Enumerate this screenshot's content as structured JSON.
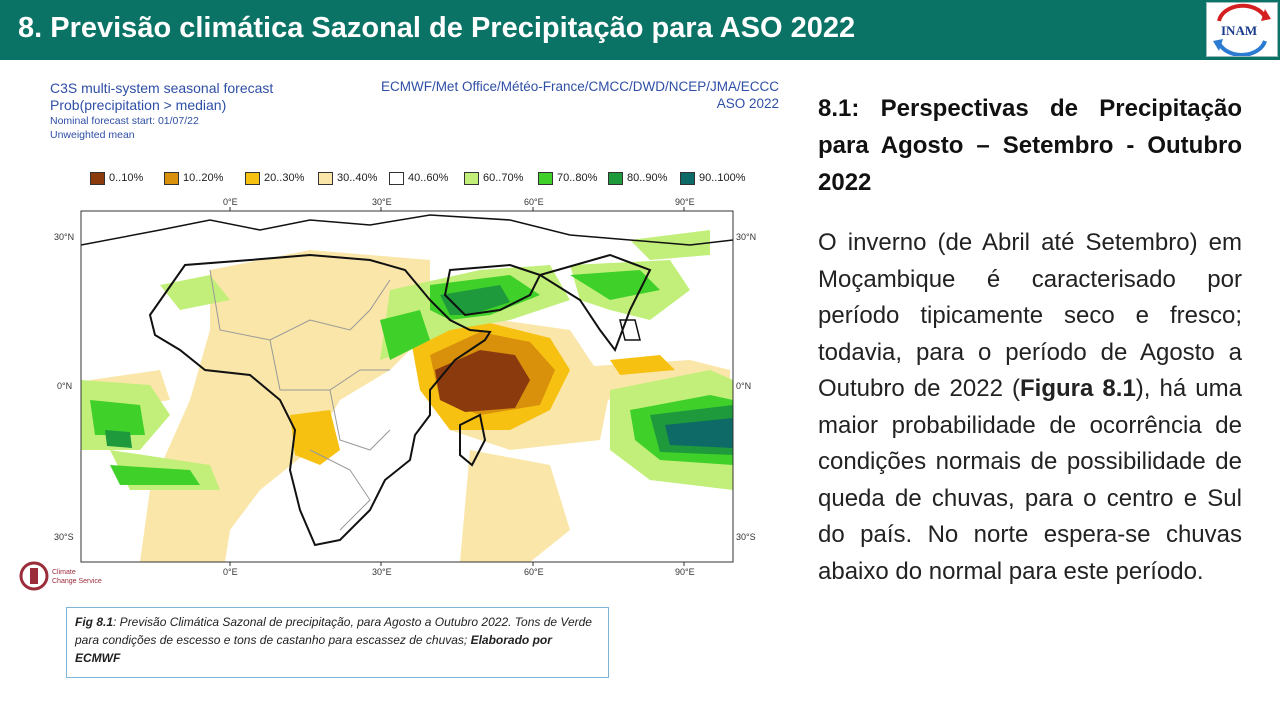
{
  "header": {
    "title": "8. Previsão climática Sazonal de Precipitação para ASO 2022",
    "logo_text": "INAM"
  },
  "forecast": {
    "title_line1": "C3S multi-system seasonal forecast",
    "title_line2": "Prob(precipitation > median)",
    "nominal_start": "Nominal forecast start: 01/07/22",
    "weighting": "Unweighted mean",
    "centres": "ECMWF/Met Office/Météo-France/CMCC/DWD/NCEP/JMA/ECCC",
    "period": "ASO 2022",
    "legend": [
      {
        "label": "0..10%",
        "color": "#8b3a0e"
      },
      {
        "label": "10..20%",
        "color": "#d9900a"
      },
      {
        "label": "20..30%",
        "color": "#f7c112"
      },
      {
        "label": "30..40%",
        "color": "#f9e6a8"
      },
      {
        "label": "40..60%",
        "color": "#ffffff"
      },
      {
        "label": "60..70%",
        "color": "#c2ef7a"
      },
      {
        "label": "70..80%",
        "color": "#3fd02a"
      },
      {
        "label": "80..90%",
        "color": "#1e9a3c"
      },
      {
        "label": "90..100%",
        "color": "#0d6a66"
      }
    ],
    "lon_labels": [
      "0°E",
      "30°E",
      "60°E",
      "90°E"
    ],
    "lat_labels": [
      "30°N",
      "0°N",
      "30°S"
    ]
  },
  "climate_logo": {
    "line1": "Climate",
    "line2": "Change Service"
  },
  "caption": {
    "label": "Fig 8.1",
    "text": ": Previsão Climática Sazonal de precipitação, para Agosto a Outubro  2022. Tons de Verde para condições de escesso e tons de castanho para escassez de chuvas; ",
    "credit": "Elaborado  por ECMWF"
  },
  "side": {
    "heading": "8.1: Perspectivas de Precipitação para Agosto – Setembro - Outubro 2022",
    "body_part1": "O inverno (de Abril até Setembro) em Moçambique é caracterisado por período tipicamente seco e fresco; todavia, para o período de Agosto a Outubro de 2022 (",
    "body_bold": "Figura 8.1",
    "body_part2": "), há uma maior probabilidade de ocorrência de condições normais de possibilidade de queda de chuvas, para o centro e Sul do país. No norte espera-se chuvas abaixo do normal para este período."
  }
}
